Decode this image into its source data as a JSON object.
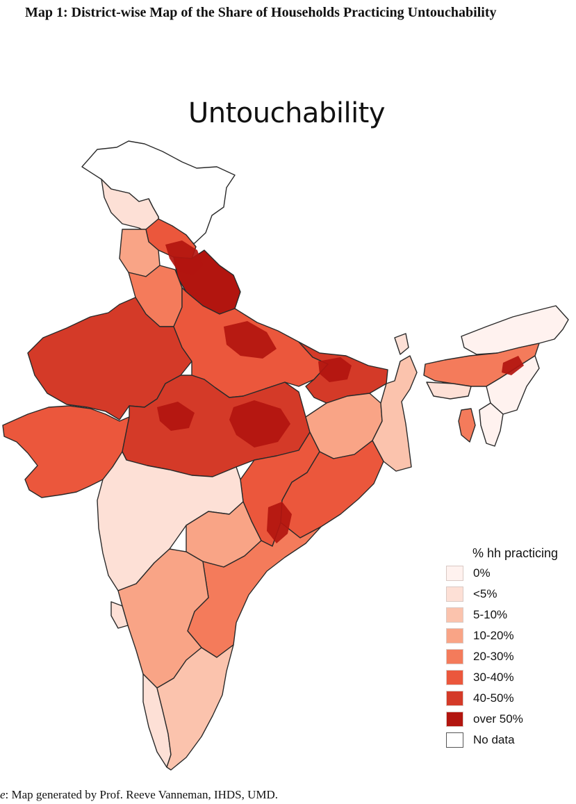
{
  "caption": {
    "title": "Map 1: District-wise Map of the Share of Households Practicing Untouchability"
  },
  "map": {
    "title": "Untouchability",
    "regions": [
      {
        "name": "Jammu & Kashmir (north)",
        "category": "No data"
      },
      {
        "name": "Jammu & Kashmir (south)",
        "category": "<5%"
      },
      {
        "name": "Himachal Pradesh",
        "category": "30-40%"
      },
      {
        "name": "Punjab",
        "category": "10-20%"
      },
      {
        "name": "Uttarakhand",
        "category": "over 50%"
      },
      {
        "name": "Haryana",
        "category": "20-30%"
      },
      {
        "name": "Rajasthan",
        "category": "40-50%"
      },
      {
        "name": "Gujarat",
        "category": "30-40%"
      },
      {
        "name": "Uttar Pradesh",
        "category": "30-40%"
      },
      {
        "name": "Madhya Pradesh",
        "category": "40-50%"
      },
      {
        "name": "Bihar",
        "category": "40-50%"
      },
      {
        "name": "Jharkhand",
        "category": "10-20%"
      },
      {
        "name": "West Bengal",
        "category": "5-10%"
      },
      {
        "name": "Chhattisgarh",
        "category": "30-40%"
      },
      {
        "name": "Odisha",
        "category": "30-40%"
      },
      {
        "name": "Maharashtra",
        "category": "<5%"
      },
      {
        "name": "Telangana",
        "category": "10-20%"
      },
      {
        "name": "Andhra Pradesh",
        "category": "20-30%"
      },
      {
        "name": "Karnataka",
        "category": "10-20%"
      },
      {
        "name": "Goa",
        "category": "<5%"
      },
      {
        "name": "Kerala",
        "category": "<5%"
      },
      {
        "name": "Tamil Nadu",
        "category": "5-10%"
      },
      {
        "name": "Sikkim",
        "category": "<5%"
      },
      {
        "name": "Arunachal Pradesh",
        "category": "0%"
      },
      {
        "name": "Assam",
        "category": "20-30%"
      },
      {
        "name": "Meghalaya",
        "category": "<5%"
      },
      {
        "name": "Nagaland & Manipur",
        "category": "0%"
      },
      {
        "name": "Tripura",
        "category": "20-30%"
      },
      {
        "name": "Mizoram",
        "category": "0%"
      }
    ],
    "hotspots": [
      {
        "name": "Western Uttarakhand",
        "category": "over 50%"
      },
      {
        "name": "Eastern Uttar Pradesh",
        "category": "over 50%"
      },
      {
        "name": "Central Madhya Pradesh",
        "category": "over 50%"
      },
      {
        "name": "Bundelkhand",
        "category": "over 50%"
      },
      {
        "name": "North Bihar",
        "category": "over 50%"
      },
      {
        "name": "Southern Chhattisgarh",
        "category": "over 50%"
      },
      {
        "name": "Central Assam",
        "category": "over 50%"
      }
    ]
  },
  "legend": {
    "title": "% hh practicing",
    "items": [
      {
        "label": "0%",
        "color": "#fff2ef"
      },
      {
        "label": "<5%",
        "color": "#fde0d6"
      },
      {
        "label": "5-10%",
        "color": "#fbc3ad"
      },
      {
        "label": "10-20%",
        "color": "#f9a486"
      },
      {
        "label": "20-30%",
        "color": "#f47b5b"
      },
      {
        "label": "30-40%",
        "color": "#eb573c"
      },
      {
        "label": "40-50%",
        "color": "#d43a28"
      },
      {
        "label": "over 50%",
        "color": "#b2150f"
      },
      {
        "label": "No data",
        "color": "#ffffff"
      }
    ]
  },
  "source": {
    "prefix": "e",
    "text": ": Map generated by Prof. Reeve Vanneman, IHDS, UMD."
  }
}
